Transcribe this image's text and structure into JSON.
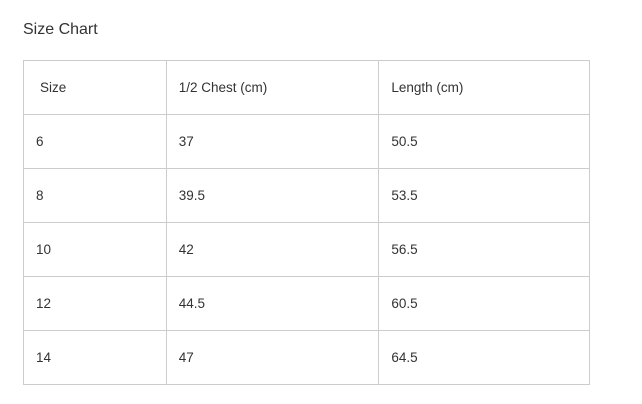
{
  "title": "Size Chart",
  "table": {
    "headers": [
      "Size",
      "1/2 Chest (cm)",
      "Length (cm)"
    ],
    "rows": [
      [
        "6",
        "37",
        "50.5"
      ],
      [
        "8",
        "39.5",
        "53.5"
      ],
      [
        "10",
        "42",
        "56.5"
      ],
      [
        "12",
        "44.5",
        "60.5"
      ],
      [
        "14",
        "47",
        "64.5"
      ]
    ]
  }
}
